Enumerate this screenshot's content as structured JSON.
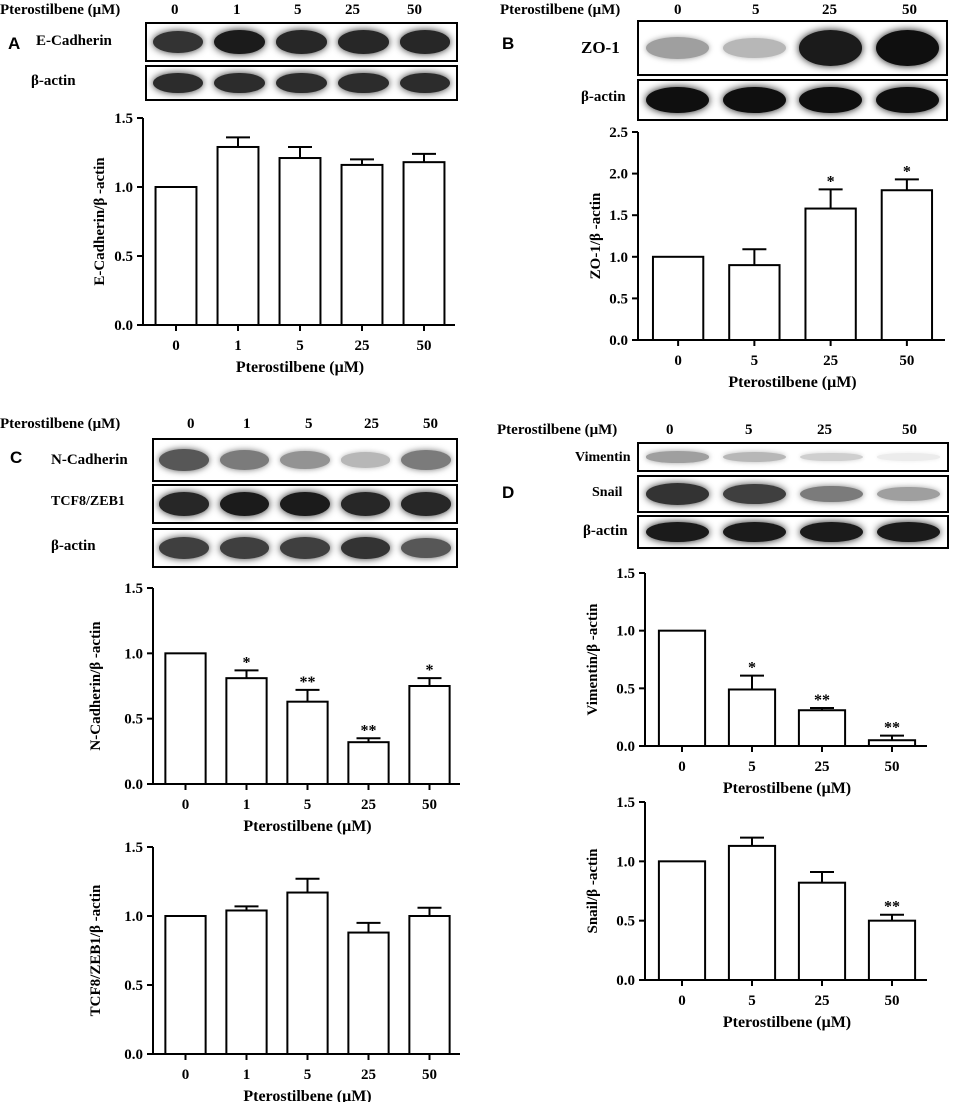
{
  "panels": [
    {
      "letter": "A",
      "header": {
        "label": "Pterostilbene (μM)",
        "concentrations": [
          "0",
          "1",
          "5",
          "25",
          "50"
        ]
      },
      "blots": [
        {
          "label": "E-Cadherin",
          "intensity": [
            0.85,
            0.95,
            0.9,
            0.9,
            0.9
          ]
        },
        {
          "label": "β-actin",
          "intensity": [
            0.88,
            0.88,
            0.88,
            0.88,
            0.88
          ]
        }
      ]
    },
    {
      "letter": "B",
      "header": {
        "label": "Pterostilbene (μM)",
        "concentrations": [
          "0",
          "5",
          "25",
          "50"
        ]
      },
      "blots": [
        {
          "label": "ZO-1",
          "intensity": [
            0.4,
            0.3,
            0.95,
            1.0
          ]
        },
        {
          "label": "β-actin",
          "intensity": [
            1.0,
            1.0,
            1.0,
            1.0
          ]
        }
      ]
    },
    {
      "letter": "C",
      "header": {
        "label": "Pterostilbene (μM)",
        "concentrations": [
          "0",
          "1",
          "5",
          "25",
          "50"
        ]
      },
      "blots": [
        {
          "label": "N-Cadherin",
          "intensity": [
            0.7,
            0.55,
            0.45,
            0.3,
            0.55
          ]
        },
        {
          "label": "TCF8/ZEB1",
          "intensity": [
            0.9,
            0.95,
            0.95,
            0.9,
            0.9
          ]
        },
        {
          "label": "β-actin",
          "intensity": [
            0.8,
            0.8,
            0.8,
            0.85,
            0.7
          ]
        }
      ]
    },
    {
      "letter": "D",
      "header": {
        "label": "Pterostilbene (μM)",
        "concentrations": [
          "0",
          "5",
          "25",
          "50"
        ]
      },
      "blots": [
        {
          "label": "Vimentin",
          "intensity": [
            0.4,
            0.3,
            0.2,
            0.08
          ]
        },
        {
          "label": "Snail",
          "intensity": [
            0.85,
            0.8,
            0.55,
            0.4
          ]
        },
        {
          "label": "β-actin",
          "intensity": [
            0.95,
            0.95,
            0.95,
            0.95
          ]
        }
      ]
    }
  ],
  "chart_data": [
    {
      "type": "bar",
      "panel": "A",
      "categories": [
        "0",
        "1",
        "5",
        "25",
        "50"
      ],
      "values": [
        1.0,
        1.29,
        1.21,
        1.16,
        1.18
      ],
      "errors": [
        0,
        0.07,
        0.08,
        0.04,
        0.06
      ],
      "significance": [
        "",
        "",
        "",
        "",
        ""
      ],
      "xlabel": "Pterostilbene (μM)",
      "ylabel": "E-Cadherin/β -actin",
      "ylim": [
        0,
        1.5
      ],
      "yticks": [
        "0.0",
        "0.5",
        "1.0",
        "1.5"
      ]
    },
    {
      "type": "bar",
      "panel": "B",
      "categories": [
        "0",
        "5",
        "25",
        "50"
      ],
      "values": [
        1.0,
        0.9,
        1.58,
        1.8
      ],
      "errors": [
        0,
        0.19,
        0.23,
        0.13
      ],
      "significance": [
        "",
        "",
        "*",
        "*"
      ],
      "xlabel": "Pterostilbene (μM)",
      "ylabel": "ZO-1/β -actin",
      "ylim": [
        0,
        2.5
      ],
      "yticks": [
        "0.0",
        "0.5",
        "1.0",
        "1.5",
        "2.0",
        "2.5"
      ]
    },
    {
      "type": "bar",
      "panel": "C",
      "categories": [
        "0",
        "1",
        "5",
        "25",
        "50"
      ],
      "values": [
        1.0,
        0.81,
        0.63,
        0.32,
        0.75
      ],
      "errors": [
        0,
        0.06,
        0.09,
        0.03,
        0.06
      ],
      "significance": [
        "",
        "*",
        "**",
        "**",
        "*"
      ],
      "xlabel": "Pterostilbene (μM)",
      "ylabel": "N-Cadherin/β -actin",
      "ylim": [
        0,
        1.5
      ],
      "yticks": [
        "0.0",
        "0.5",
        "1.0",
        "1.5"
      ]
    },
    {
      "type": "bar",
      "panel": "C",
      "categories": [
        "0",
        "1",
        "5",
        "25",
        "50"
      ],
      "values": [
        1.0,
        1.04,
        1.17,
        0.88,
        1.0
      ],
      "errors": [
        0,
        0.03,
        0.1,
        0.07,
        0.06
      ],
      "significance": [
        "",
        "",
        "",
        "",
        ""
      ],
      "xlabel": "Pterostilbene (μM)",
      "ylabel": "TCF8/ZEB1/β -actin",
      "ylim": [
        0,
        1.5
      ],
      "yticks": [
        "0.0",
        "0.5",
        "1.0",
        "1.5"
      ]
    },
    {
      "type": "bar",
      "panel": "D",
      "categories": [
        "0",
        "5",
        "25",
        "50"
      ],
      "values": [
        1.0,
        0.49,
        0.31,
        0.05
      ],
      "errors": [
        0,
        0.12,
        0.02,
        0.04
      ],
      "significance": [
        "",
        "*",
        "**",
        "**"
      ],
      "xlabel": "Pterostilbene (μM)",
      "ylabel": "Vimentin/β -actin",
      "ylim": [
        0,
        1.5
      ],
      "yticks": [
        "0.0",
        "0.5",
        "1.0",
        "1.5"
      ]
    },
    {
      "type": "bar",
      "panel": "D",
      "categories": [
        "0",
        "5",
        "25",
        "50"
      ],
      "values": [
        1.0,
        1.13,
        0.82,
        0.5
      ],
      "errors": [
        0,
        0.07,
        0.09,
        0.05
      ],
      "significance": [
        "",
        "",
        "",
        "**"
      ],
      "xlabel": "Pterostilbene (μM)",
      "ylabel": "Snail/β -actin",
      "ylim": [
        0,
        1.5
      ],
      "yticks": [
        "0.0",
        "0.5",
        "1.0",
        "1.5"
      ]
    }
  ]
}
